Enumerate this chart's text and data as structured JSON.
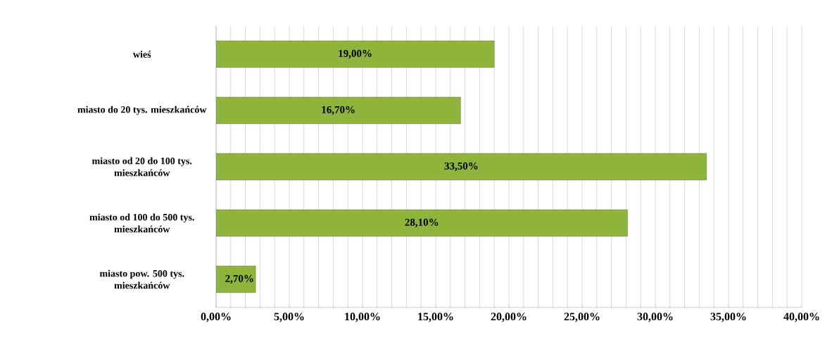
{
  "chart_data": {
    "type": "bar",
    "orientation": "horizontal",
    "categories": [
      "wieś",
      "miasto do 20 tys. mieszkańców",
      "miasto  od 20 do 100 tys. mieszkańców",
      "miasto od 100 do 500 tys. mieszkańców",
      "miasto pow. 500 tys. mieszkańców"
    ],
    "values": [
      19.0,
      16.7,
      33.5,
      28.1,
      2.7
    ],
    "value_labels": [
      "19,00%",
      "16,70%",
      "33,50%",
      "28,10%",
      "2,70%"
    ],
    "color": "#8fb43c",
    "xlim": [
      0,
      40
    ],
    "xticks": [
      {
        "value": 0,
        "label": "0,00%"
      },
      {
        "value": 5,
        "label": "5,00%"
      },
      {
        "value": 10,
        "label": "10,00%"
      },
      {
        "value": 15,
        "label": "15,00%"
      },
      {
        "value": 20,
        "label": "20,00%"
      },
      {
        "value": 25,
        "label": "25,00%"
      },
      {
        "value": 30,
        "label": "30,00%"
      },
      {
        "value": 35,
        "label": "35,00%"
      },
      {
        "value": 40,
        "label": "40,00%"
      }
    ],
    "grid": "x"
  }
}
